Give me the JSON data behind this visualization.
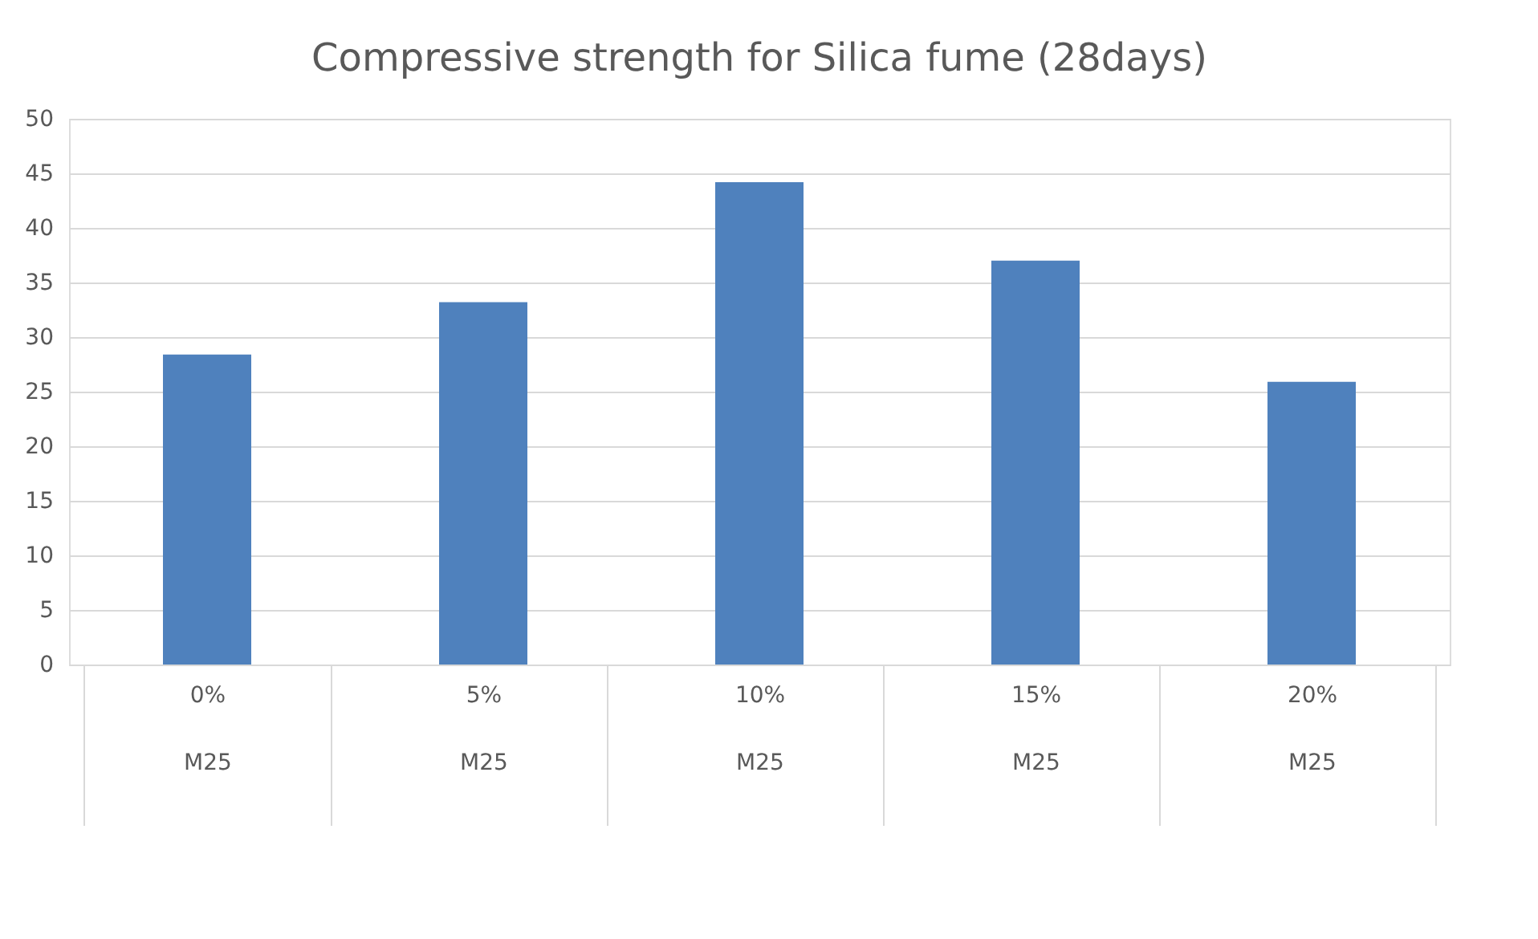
{
  "chart_data": {
    "type": "bar",
    "title": "Compressive strength for Silica fume (28days)",
    "categories": [
      "0%\nM25",
      "5%\nM25",
      "10%\nM25",
      "15%\nM25",
      "20%\nM25"
    ],
    "values": [
      28.4,
      33.2,
      44.2,
      37.0,
      25.9
    ],
    "color": "#4f81bd",
    "ylim": [
      0,
      50
    ],
    "yticks": [
      0,
      5,
      10,
      15,
      20,
      25,
      30,
      35,
      40,
      45,
      50
    ],
    "grid": "y"
  }
}
